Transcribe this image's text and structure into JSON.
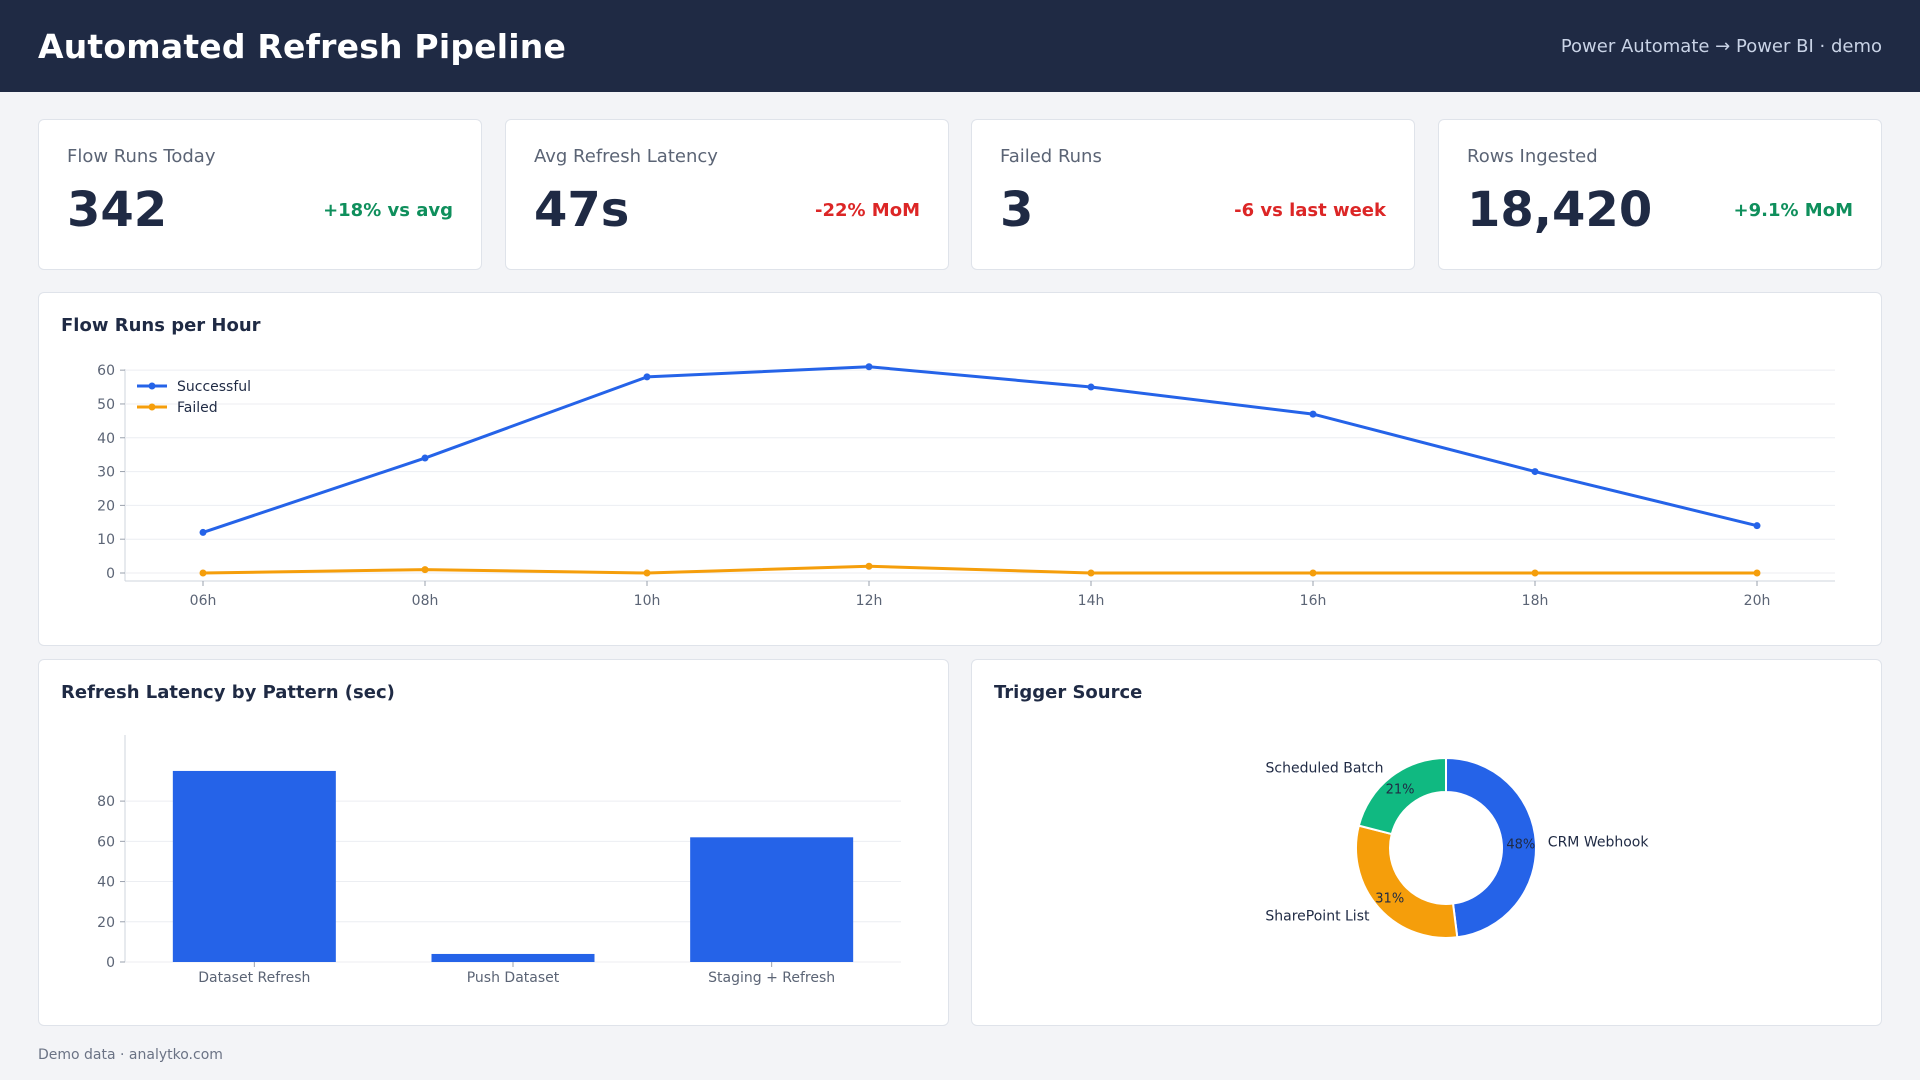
{
  "header": {
    "title": "Automated Refresh Pipeline",
    "subtitle": "Power Automate → Power BI · demo"
  },
  "kpis": [
    {
      "label": "Flow Runs Today",
      "value": "342",
      "delta": "+18% vs avg",
      "trend": "positive"
    },
    {
      "label": "Avg Refresh Latency",
      "value": "47s",
      "delta": "-22% MoM",
      "trend": "negative"
    },
    {
      "label": "Failed Runs",
      "value": "3",
      "delta": "-6 vs last week",
      "trend": "negative"
    },
    {
      "label": "Rows Ingested",
      "value": "18,420",
      "delta": "+9.1% MoM",
      "trend": "positive"
    }
  ],
  "colors": {
    "blue": "#2563e8",
    "orange": "#f59e0b",
    "green": "#10b981",
    "positive": "#0f8f5c",
    "negative": "#dc2626"
  },
  "footer": "Demo data · analytko.com",
  "chart_data": [
    {
      "type": "line",
      "title": "Flow Runs per Hour",
      "x": [
        "06h",
        "08h",
        "10h",
        "12h",
        "14h",
        "16h",
        "18h",
        "20h"
      ],
      "series": [
        {
          "name": "Successful",
          "color": "#2563e8",
          "values": [
            12,
            34,
            58,
            61,
            55,
            47,
            30,
            14
          ]
        },
        {
          "name": "Failed",
          "color": "#f59e0b",
          "values": [
            0,
            1,
            0,
            2,
            0,
            0,
            0,
            0
          ]
        }
      ],
      "ylim": [
        0,
        63
      ],
      "yticks": [
        0,
        10,
        20,
        30,
        40,
        50,
        60
      ],
      "grid": true,
      "legend": "top-left"
    },
    {
      "type": "bar",
      "title": "Refresh Latency by Pattern (sec)",
      "categories": [
        "Dataset Refresh",
        "Push Dataset",
        "Staging + Refresh"
      ],
      "values": [
        95,
        4,
        62
      ],
      "color": "#2563e8",
      "ylim": [
        0,
        100
      ],
      "yticks": [
        0,
        20,
        40,
        60,
        80
      ],
      "grid": true
    },
    {
      "type": "pie",
      "title": "Trigger Source",
      "donut": true,
      "labels": [
        "CRM Webhook",
        "SharePoint List",
        "Scheduled Batch"
      ],
      "values": [
        48,
        31,
        21
      ],
      "percent_labels": [
        "48%",
        "31%",
        "21%"
      ],
      "colors": [
        "#2563e8",
        "#f59e0b",
        "#10b981"
      ]
    }
  ]
}
